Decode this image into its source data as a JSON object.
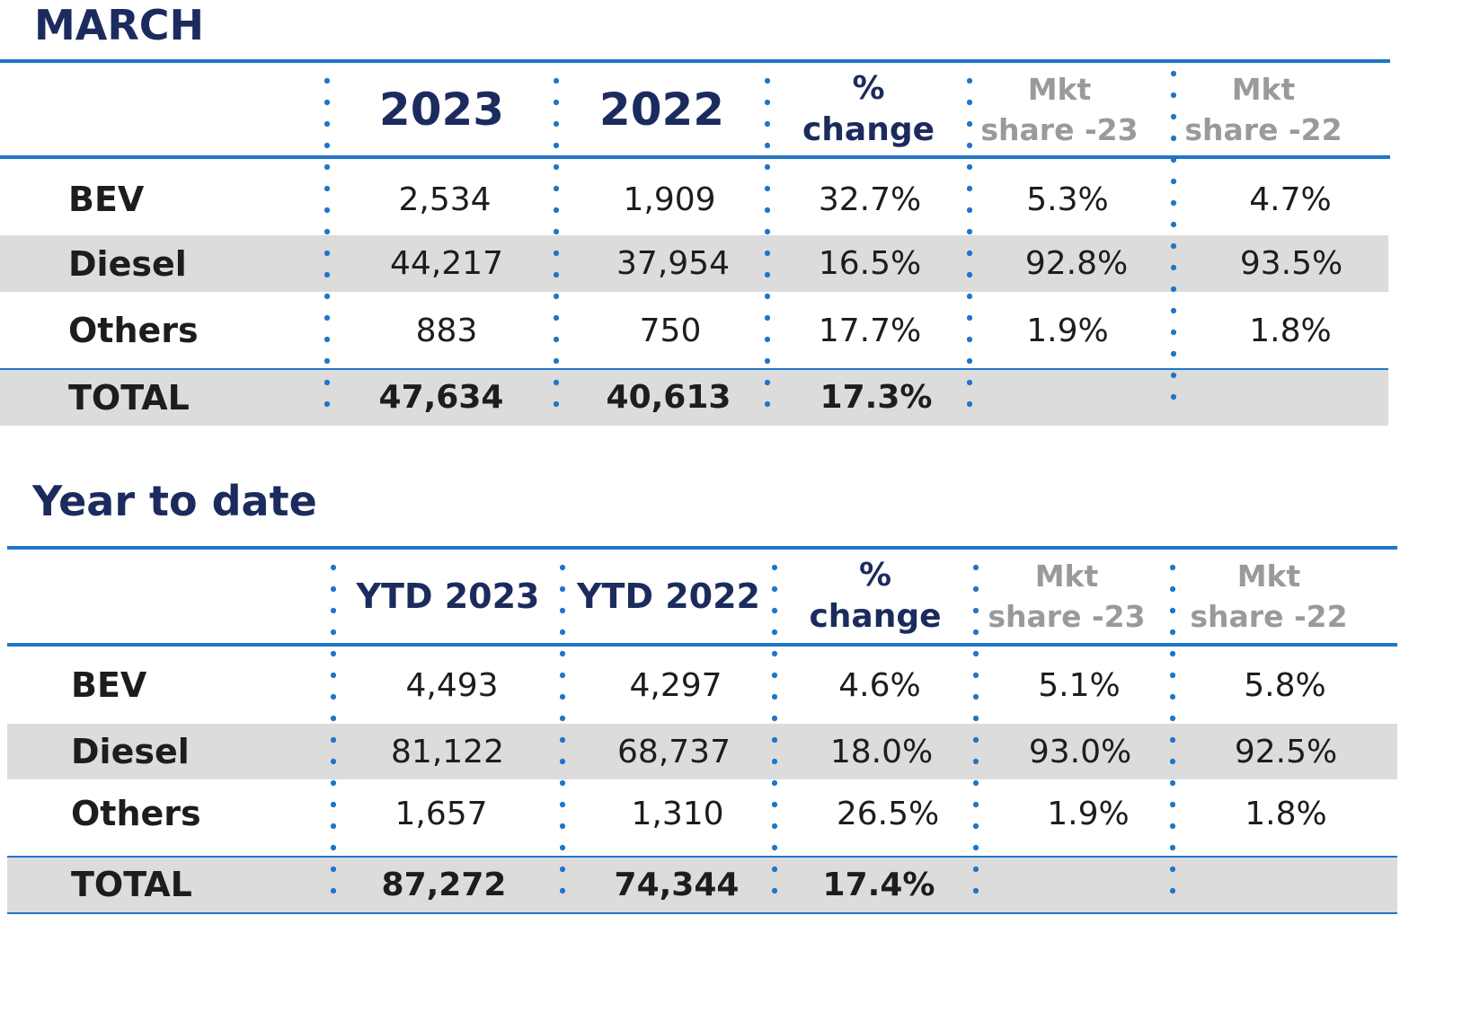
{
  "chart_data": [
    {
      "type": "table",
      "title": "MARCH",
      "columns": [
        "",
        "2023",
        "2022",
        "%\nchange",
        "Mkt\nshare -23",
        "Mkt\nshare -22"
      ],
      "rows": [
        {
          "label": "BEV",
          "values": [
            "2,534",
            "1,909",
            "32.7%",
            "5.3%",
            "4.7%"
          ]
        },
        {
          "label": "Diesel",
          "values": [
            "44,217",
            "37,954",
            "16.5%",
            "92.8%",
            "93.5%"
          ]
        },
        {
          "label": "Others",
          "values": [
            "883",
            "750",
            "17.7%",
            "1.9%",
            "1.8%"
          ]
        },
        {
          "label": "TOTAL",
          "values": [
            "47,634",
            "40,613",
            "17.3%",
            "",
            ""
          ]
        }
      ]
    },
    {
      "type": "table",
      "title": "Year to date",
      "columns": [
        "",
        "YTD 2023",
        "YTD 2022",
        "%\nchange",
        "Mkt\nshare -23",
        "Mkt\nshare -22"
      ],
      "rows": [
        {
          "label": "BEV",
          "values": [
            "4,493",
            "4,297",
            "4.6%",
            "5.1%",
            "5.8%"
          ]
        },
        {
          "label": "Diesel",
          "values": [
            "81,122",
            "68,737",
            "18.0%",
            "93.0%",
            "92.5%"
          ]
        },
        {
          "label": "Others",
          "values": [
            "1,657",
            "1,310",
            "26.5%",
            "1.9%",
            "1.8%"
          ]
        },
        {
          "label": "TOTAL",
          "values": [
            "87,272",
            "74,344",
            "17.4%",
            "",
            ""
          ]
        }
      ]
    }
  ],
  "colors": {
    "title": "#1c2b5e",
    "rule": "#1f76c8",
    "band": "#dcdcdc",
    "share_header": "#9a9a9a"
  }
}
